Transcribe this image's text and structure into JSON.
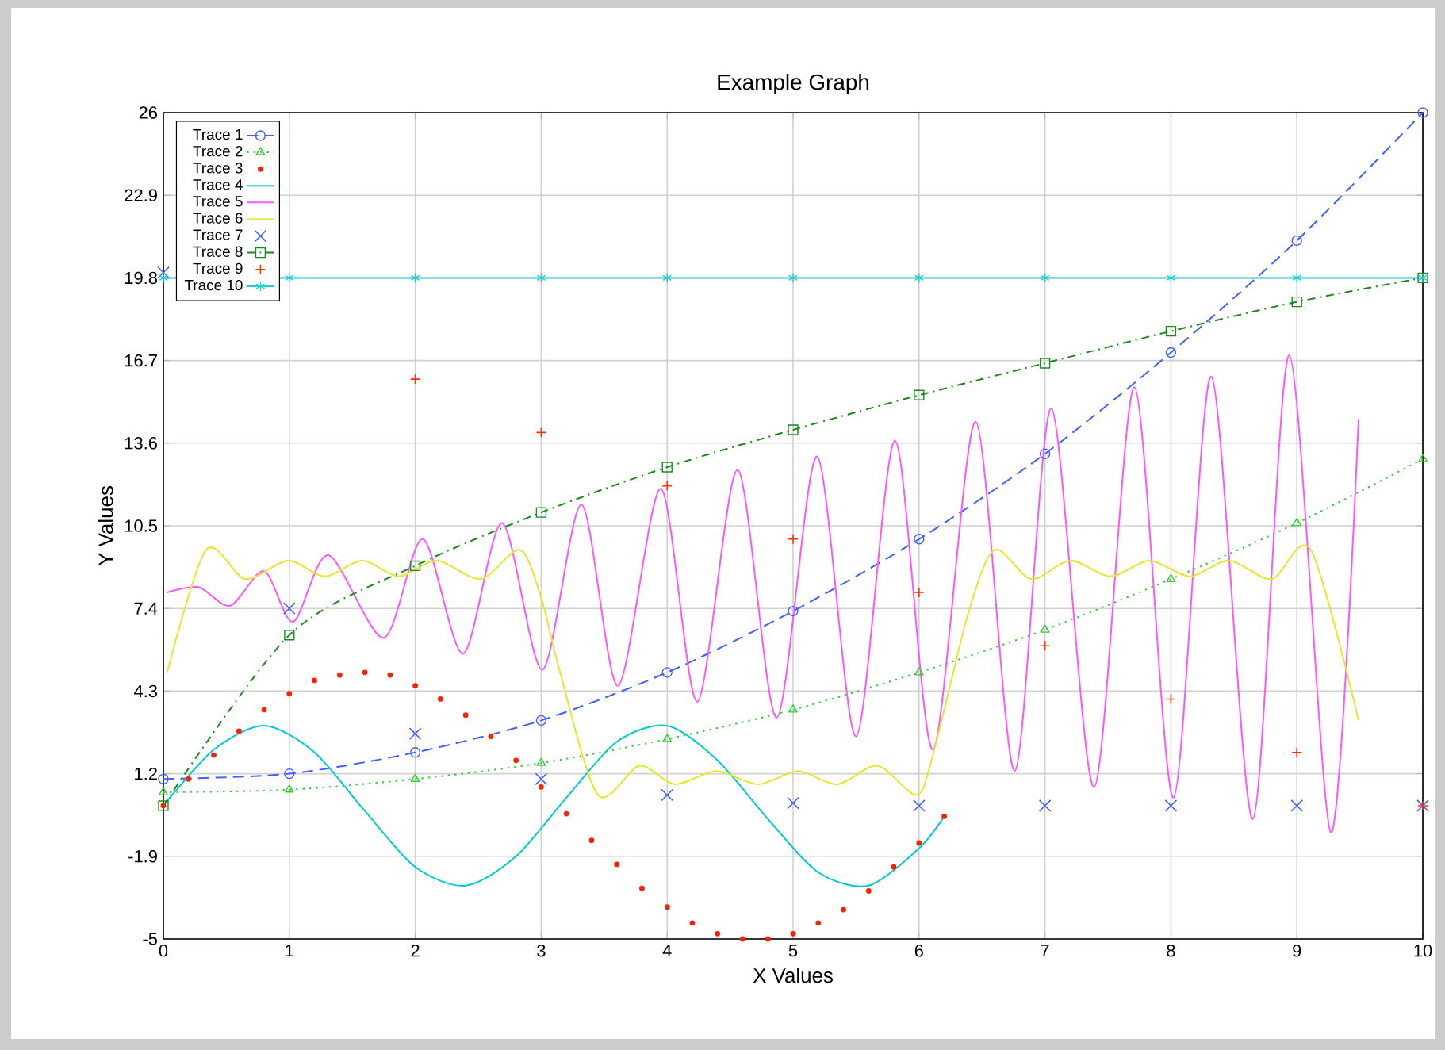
{
  "chart_data": {
    "type": "line",
    "title": "Example Graph",
    "xlabel": "X Values",
    "ylabel": "Y Values",
    "x": [
      0,
      1,
      2,
      3,
      4,
      5,
      6,
      7,
      8,
      9,
      10
    ],
    "xlim": [
      0,
      10
    ],
    "xticks": [
      0,
      1,
      2,
      3,
      4,
      5,
      6,
      7,
      8,
      9,
      10
    ],
    "ylim": [
      -5,
      26
    ],
    "yticks": [
      -5,
      -1.9,
      1.2,
      4.3,
      7.4,
      10.5,
      13.6,
      16.7,
      19.8,
      22.9,
      26
    ],
    "grid": true,
    "legend": "top left",
    "series": [
      {
        "name": "Trace 1",
        "color": "#4060ff",
        "marker": "circle",
        "line_style": "dashed",
        "values": [
          1.0,
          1.2,
          2.0,
          3.2,
          5.0,
          7.3,
          10.0,
          13.2,
          17.0,
          21.2,
          26.0
        ]
      },
      {
        "name": "Trace 2",
        "color": "#33cc33",
        "marker": "triangle",
        "line_style": "dotted",
        "values": [
          0.5,
          0.6,
          1.0,
          1.6,
          2.5,
          3.6,
          5.0,
          6.6,
          8.5,
          10.6,
          13.0
        ]
      },
      {
        "name": "Trace 3",
        "type": "scatter",
        "color": "#ff2000",
        "marker": "circle",
        "x": [
          0,
          0.2,
          0.4,
          0.6,
          0.8,
          1.0,
          1.2,
          1.4,
          1.6,
          1.8,
          2.0,
          2.2,
          2.4,
          2.6,
          2.8,
          3.0,
          3.2,
          3.4,
          3.6,
          3.8,
          4.0,
          4.2,
          4.4,
          4.6,
          4.8,
          5.0,
          5.2,
          5.4,
          5.6,
          5.8,
          6.0,
          6.2
        ],
        "values": [
          0,
          1.0,
          1.9,
          2.8,
          3.6,
          4.2,
          4.7,
          4.9,
          5.0,
          4.9,
          4.5,
          4.0,
          3.4,
          2.6,
          1.7,
          0.7,
          -0.3,
          -1.3,
          -2.2,
          -3.1,
          -3.8,
          -4.4,
          -4.8,
          -5.0,
          -5.0,
          -4.8,
          -4.4,
          -3.9,
          -3.2,
          -2.3,
          -1.4,
          -0.4
        ]
      },
      {
        "name": "Trace 4",
        "color": "#00cccc",
        "line_style": "solid",
        "x": [
          0,
          0.4,
          0.8,
          1.2,
          1.6,
          2.0,
          2.4,
          2.8,
          3.2,
          3.6,
          4.0,
          4.4,
          4.8,
          5.2,
          5.6,
          6.0,
          6.2
        ],
        "values": [
          0,
          2.1,
          3.0,
          2.0,
          -0.2,
          -2.3,
          -3.0,
          -1.9,
          0.3,
          2.4,
          3.0,
          1.7,
          -0.5,
          -2.5,
          -3.0,
          -1.6,
          -0.4
        ]
      },
      {
        "name": "Trace 5",
        "color": "#ff55ff",
        "line_style": "solid",
        "x": [
          0.03,
          0.28,
          0.53,
          0.8,
          1.03,
          1.31,
          1.75,
          2.06,
          2.38,
          2.69,
          3.01,
          3.32,
          3.61,
          3.95,
          4.24,
          4.56,
          4.87,
          5.19,
          5.5,
          5.81,
          6.11,
          6.45,
          6.76,
          7.05,
          7.39,
          7.71,
          8.02,
          8.32,
          8.65,
          8.94,
          9.27,
          9.49
        ],
        "values": [
          8.0,
          8.2,
          7.5,
          8.8,
          6.9,
          9.4,
          6.3,
          10.0,
          5.7,
          10.6,
          5.1,
          11.3,
          4.5,
          11.9,
          3.9,
          12.6,
          3.3,
          13.1,
          2.6,
          13.7,
          2.1,
          14.4,
          1.3,
          14.9,
          0.7,
          15.7,
          0.3,
          16.1,
          -0.5,
          16.9,
          -1.0,
          14.5
        ]
      },
      {
        "name": "Trace 6",
        "color": "#e6e62e",
        "line_style": "solid",
        "x": [
          0.03,
          0.34,
          0.65,
          0.99,
          1.28,
          1.58,
          1.87,
          2.17,
          2.52,
          2.83,
          3.0,
          3.15,
          3.45,
          3.78,
          4.06,
          4.39,
          4.72,
          5.04,
          5.35,
          5.67,
          5.98,
          6.11,
          6.39,
          6.6,
          6.89,
          7.2,
          7.52,
          7.83,
          8.15,
          8.46,
          8.8,
          9.11,
          9.49
        ],
        "values": [
          5.0,
          9.6,
          8.5,
          9.2,
          8.6,
          9.2,
          8.6,
          9.2,
          8.5,
          9.6,
          7.8,
          5.0,
          0.4,
          1.5,
          0.8,
          1.3,
          0.8,
          1.3,
          0.8,
          1.5,
          0.4,
          1.9,
          7.2,
          9.6,
          8.5,
          9.2,
          8.6,
          9.2,
          8.6,
          9.2,
          8.5,
          9.6,
          3.2
        ]
      },
      {
        "name": "Trace 7",
        "type": "scatter",
        "color": "#4060ff",
        "marker": "cross",
        "values": [
          20.0,
          7.4,
          2.7,
          1.0,
          0.4,
          0.1,
          0,
          0,
          0,
          0,
          0
        ]
      },
      {
        "name": "Trace 8",
        "color": "#1a8a1a",
        "marker": "square",
        "line_style": "dashdot",
        "values": [
          0,
          6.4,
          9.0,
          11.0,
          12.7,
          14.1,
          15.4,
          16.6,
          17.8,
          18.9,
          19.8
        ]
      },
      {
        "name": "Trace 9",
        "type": "scatter",
        "color": "#ff3300",
        "marker": "plus",
        "values": [
          null,
          null,
          16.0,
          14.0,
          12.0,
          10.0,
          8.0,
          6.0,
          4.0,
          2.0,
          0
        ]
      },
      {
        "name": "Trace 10",
        "color": "#20d0d0",
        "marker": "cross",
        "line_style": "solid",
        "values": [
          19.8,
          19.8,
          19.8,
          19.8,
          19.8,
          19.8,
          19.8,
          19.8,
          19.8,
          19.8,
          19.8
        ]
      }
    ]
  }
}
